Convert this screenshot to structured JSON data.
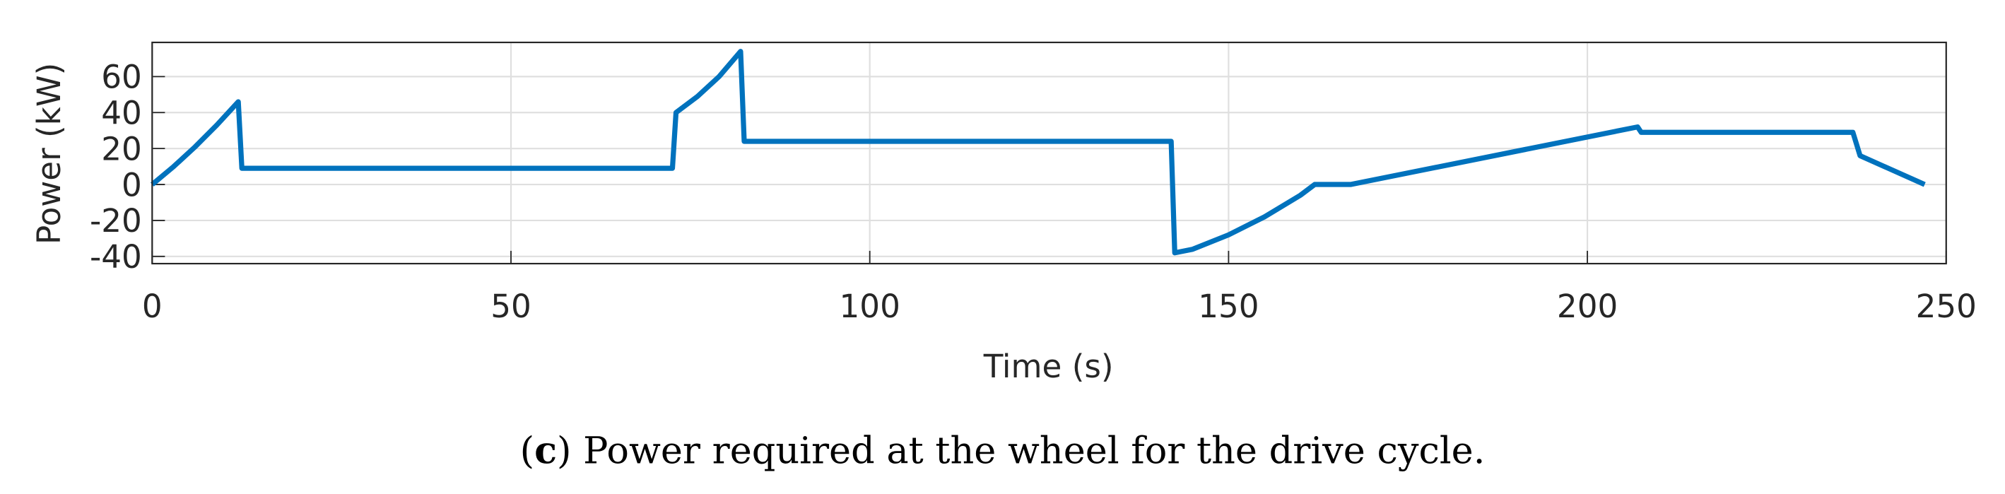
{
  "chart_data": {
    "type": "line",
    "xlabel": "Time (s)",
    "ylabel": "Power (kW)",
    "x": [
      0,
      3,
      6,
      9,
      12,
      12.5,
      72.5,
      73,
      76,
      79,
      82,
      82.5,
      142,
      142.5,
      145,
      150,
      155,
      160,
      162,
      167,
      207,
      207.5,
      237,
      238,
      247
    ],
    "series": [
      {
        "name": "Power",
        "color": "#0072bd",
        "values": [
          0,
          10,
          21,
          33,
          46,
          9,
          9,
          40,
          49,
          60,
          74,
          24,
          24,
          -38,
          -36,
          -28,
          -18,
          -6,
          0,
          0,
          32,
          29,
          29,
          16,
          0
        ]
      }
    ],
    "xlim": [
      0,
      250
    ],
    "xticks": [
      0,
      50,
      100,
      150,
      200,
      250
    ],
    "ylim": [
      -44,
      79
    ],
    "yticks": [
      -40,
      -20,
      0,
      20,
      40,
      60
    ],
    "grid": true,
    "caption_open": "(",
    "caption_label": "c",
    "caption_text": ") Power required at the wheel for the drive cycle."
  }
}
